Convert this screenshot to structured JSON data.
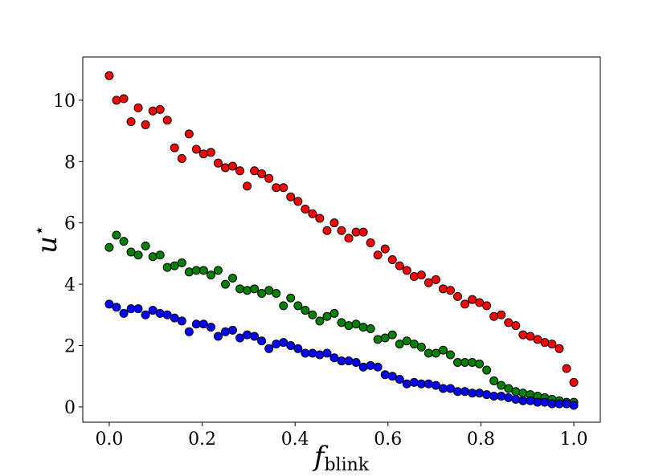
{
  "chart_data": {
    "type": "scatter",
    "xlabel": "f",
    "xlabel_sub": "blink",
    "ylabel": "u",
    "ylabel_sup": "⋆",
    "x": [
      0,
      0.0156,
      0.0313,
      0.0469,
      0.0625,
      0.0781,
      0.0938,
      0.1094,
      0.125,
      0.1406,
      0.1563,
      0.1719,
      0.1875,
      0.2031,
      0.2188,
      0.2344,
      0.25,
      0.2656,
      0.2813,
      0.2969,
      0.3125,
      0.3281,
      0.3438,
      0.3594,
      0.375,
      0.3906,
      0.4063,
      0.4219,
      0.4375,
      0.4531,
      0.4688,
      0.4844,
      0.5,
      0.5156,
      0.5313,
      0.5469,
      0.5625,
      0.5781,
      0.5938,
      0.6094,
      0.625,
      0.6406,
      0.6563,
      0.6719,
      0.6875,
      0.7031,
      0.7188,
      0.7344,
      0.75,
      0.7656,
      0.7813,
      0.7969,
      0.8125,
      0.8281,
      0.8438,
      0.8594,
      0.875,
      0.8906,
      0.9063,
      0.9219,
      0.9375,
      0.9531,
      0.9688,
      0.9844,
      1
    ],
    "series": [
      {
        "color": "#ff0000",
        "values": [
          10.8,
          10.0,
          10.05,
          9.3,
          9.75,
          9.2,
          9.65,
          9.7,
          9.35,
          8.45,
          8.1,
          8.9,
          8.4,
          8.25,
          8.3,
          7.95,
          7.8,
          7.85,
          7.7,
          7.2,
          7.7,
          7.6,
          7.45,
          7.15,
          7.15,
          6.85,
          6.7,
          6.45,
          6.3,
          6.15,
          5.75,
          6.0,
          5.75,
          5.5,
          5.7,
          5.7,
          5.35,
          4.95,
          5.15,
          4.8,
          4.6,
          4.45,
          4.25,
          4.3,
          4.05,
          4.15,
          3.85,
          3.8,
          3.6,
          3.35,
          3.5,
          3.4,
          3.3,
          2.95,
          3.0,
          2.75,
          2.65,
          2.35,
          2.3,
          2.2,
          2.1,
          2.05,
          1.9,
          1.25,
          0.8
        ]
      },
      {
        "color": "#008000",
        "values": [
          5.2,
          5.6,
          5.4,
          5.05,
          4.95,
          5.25,
          4.9,
          4.95,
          4.55,
          4.6,
          4.7,
          4.4,
          4.45,
          4.45,
          4.3,
          4.45,
          4.0,
          4.2,
          3.85,
          3.8,
          3.85,
          3.7,
          3.8,
          3.7,
          3.3,
          3.55,
          3.3,
          3.15,
          3.0,
          2.8,
          2.95,
          3.05,
          2.75,
          2.65,
          2.7,
          2.6,
          2.55,
          2.2,
          2.25,
          2.35,
          2.05,
          2.15,
          2.05,
          1.95,
          1.75,
          1.75,
          1.85,
          1.7,
          1.45,
          1.45,
          1.45,
          1.4,
          1.2,
          0.85,
          0.7,
          0.6,
          0.5,
          0.45,
          0.4,
          0.35,
          0.3,
          0.25,
          0.2,
          0.15,
          0.15
        ]
      },
      {
        "color": "#0000ff",
        "values": [
          3.35,
          3.25,
          3.05,
          3.2,
          3.2,
          3.0,
          3.15,
          3.05,
          3.0,
          2.9,
          2.8,
          2.45,
          2.7,
          2.7,
          2.6,
          2.3,
          2.45,
          2.5,
          2.25,
          2.35,
          2.3,
          2.15,
          1.9,
          2.05,
          2.1,
          2.0,
          1.9,
          1.75,
          1.75,
          1.7,
          1.75,
          1.6,
          1.5,
          1.5,
          1.45,
          1.3,
          1.35,
          1.3,
          1.05,
          1.0,
          0.9,
          0.75,
          0.8,
          0.75,
          0.75,
          0.7,
          0.6,
          0.6,
          0.5,
          0.5,
          0.45,
          0.45,
          0.4,
          0.35,
          0.35,
          0.3,
          0.25,
          0.2,
          0.2,
          0.15,
          0.15,
          0.1,
          0.1,
          0.1,
          0.05
        ]
      }
    ],
    "xlim": [
      -0.057,
      1.057
    ],
    "ylim": [
      -0.5,
      11.41
    ],
    "xticks": [
      {
        "value": 0,
        "label": "0.0"
      },
      0.2,
      0.4,
      0.6,
      0.8,
      {
        "value": 1,
        "label": "1.0"
      }
    ],
    "yticks": [
      0,
      2,
      4,
      6,
      8,
      10
    ],
    "grid": false
  }
}
